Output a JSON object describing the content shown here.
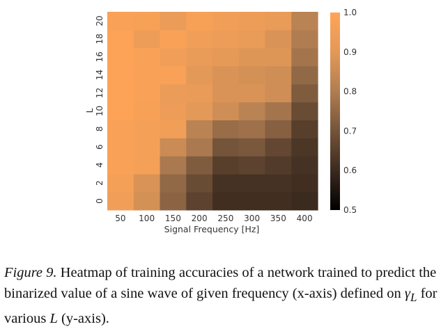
{
  "chart_data": {
    "type": "heatmap",
    "x_categories": [
      "50",
      "100",
      "150",
      "200",
      "250",
      "300",
      "350",
      "400"
    ],
    "y_categories": [
      "0",
      "2",
      "4",
      "6",
      "8",
      "10",
      "12",
      "14",
      "16",
      "18",
      "20"
    ],
    "xlabel": "Signal Frequency [Hz]",
    "ylabel": "L",
    "colorbar": {
      "min": 0.5,
      "max": 1.0,
      "ticks": [
        "0.5",
        "0.6",
        "0.7",
        "0.8",
        "0.9",
        "1.0"
      ]
    },
    "values": [
      [
        0.95,
        0.87,
        0.74,
        0.66,
        0.61,
        0.61,
        0.61,
        0.6
      ],
      [
        0.96,
        0.88,
        0.75,
        0.68,
        0.62,
        0.62,
        0.62,
        0.61
      ],
      [
        0.98,
        0.96,
        0.79,
        0.72,
        0.65,
        0.66,
        0.64,
        0.62
      ],
      [
        0.98,
        0.96,
        0.85,
        0.79,
        0.7,
        0.71,
        0.67,
        0.63
      ],
      [
        0.98,
        0.96,
        0.95,
        0.82,
        0.76,
        0.77,
        0.73,
        0.65
      ],
      [
        0.99,
        0.97,
        0.94,
        0.9,
        0.86,
        0.82,
        0.78,
        0.68
      ],
      [
        0.99,
        0.98,
        0.93,
        0.92,
        0.88,
        0.88,
        0.86,
        0.72
      ],
      [
        0.99,
        0.98,
        0.98,
        0.9,
        0.88,
        0.87,
        0.86,
        0.75
      ],
      [
        0.99,
        0.98,
        0.95,
        0.92,
        0.91,
        0.89,
        0.89,
        0.78
      ],
      [
        0.99,
        0.94,
        0.98,
        0.95,
        0.94,
        0.92,
        0.88,
        0.8
      ],
      [
        0.98,
        0.97,
        0.93,
        0.97,
        0.95,
        0.94,
        0.92,
        0.82
      ]
    ]
  },
  "caption": {
    "lead": "Figure 9.",
    "text_1": " Heatmap of training accuracies of a network trained to predict the binarized value of a sine wave of given frequency (x-axis) defined on ",
    "gamma": "γ",
    "gamma_sub": "L",
    "text_2": " for various ",
    "L": "L",
    "text_3": " (y-axis)."
  }
}
